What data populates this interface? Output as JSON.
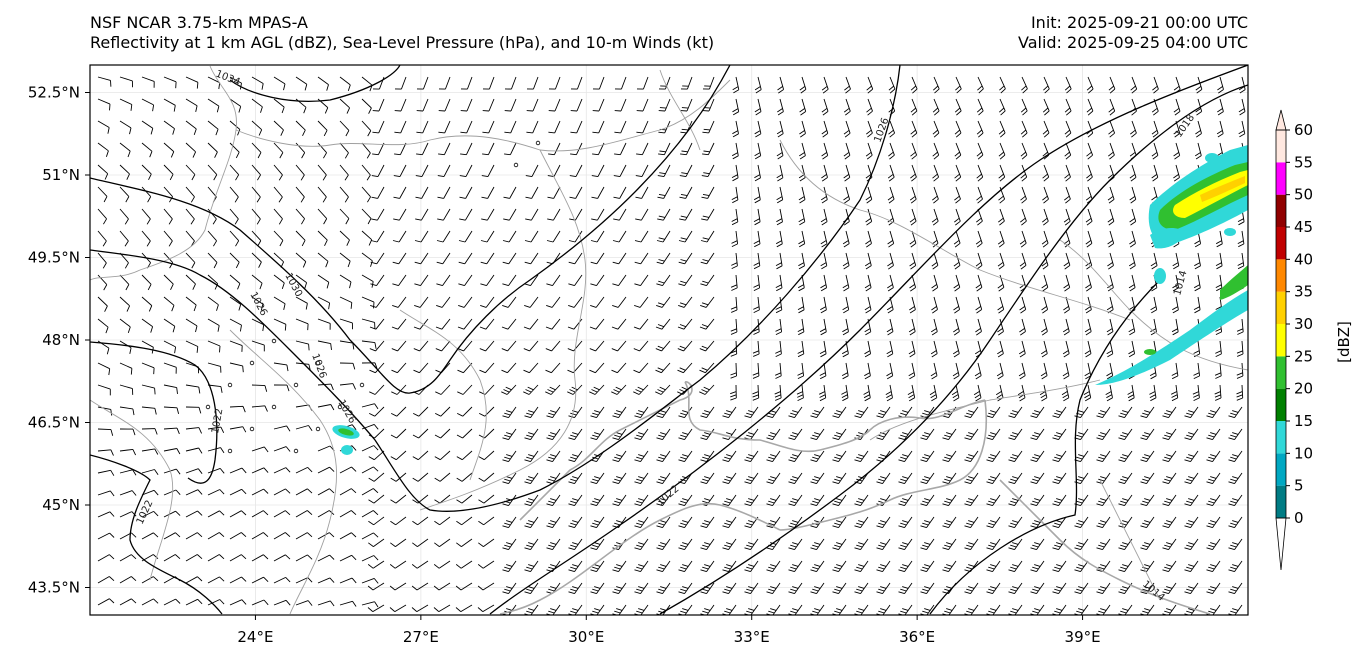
{
  "header": {
    "title_left_line1": "NSF NCAR 3.75-km MPAS-A",
    "title_left_line2": "Reflectivity at 1 km AGL (dBZ), Sea-Level Pressure (hPa), and 10-m Winds (kt)",
    "init": "Init: 2025-09-21 00:00 UTC",
    "valid": "Valid: 2025-09-25 04:00 UTC"
  },
  "map": {
    "lon_range": [
      21,
      42
    ],
    "lat_range": [
      43,
      53
    ],
    "lon_ticks": [
      "24°E",
      "27°E",
      "30°E",
      "33°E",
      "36°E",
      "39°E"
    ],
    "lat_ticks": [
      "52.5°N",
      "51°N",
      "49.5°N",
      "48°N",
      "46.5°N",
      "45°N",
      "43.5°N"
    ],
    "isobar_labels": [
      "1034",
      "1030",
      "1026",
      "1026",
      "1026",
      "1022",
      "1022",
      "1022",
      "1026",
      "1018",
      "1014",
      "1014"
    ]
  },
  "colorbar": {
    "label": "[dBZ]",
    "ticks": [
      "0",
      "5",
      "10",
      "15",
      "20",
      "25",
      "30",
      "35",
      "40",
      "45",
      "50",
      "55",
      "60"
    ],
    "colors": [
      "#007c84",
      "#00a8c2",
      "#30d8d8",
      "#008000",
      "#30c030",
      "#ffff00",
      "#ffd000",
      "#ff8800",
      "#c00000",
      "#900000",
      "#ff00ff",
      "#ffe8e0"
    ]
  }
}
